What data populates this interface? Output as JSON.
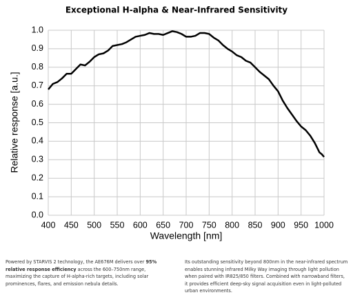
{
  "chart_data": {
    "type": "line",
    "title": "Exceptional H-alpha & Near-Infrared Sensitivity",
    "x_label": "Wavelength [nm]",
    "y_label": "Relative response [a.u.]",
    "x": [
      400,
      410,
      420,
      430,
      440,
      450,
      460,
      470,
      480,
      490,
      500,
      510,
      520,
      530,
      540,
      550,
      560,
      570,
      580,
      590,
      600,
      610,
      620,
      630,
      640,
      650,
      660,
      670,
      680,
      690,
      700,
      710,
      720,
      730,
      740,
      750,
      760,
      770,
      780,
      790,
      800,
      810,
      820,
      830,
      840,
      850,
      860,
      870,
      880,
      890,
      900,
      910,
      920,
      930,
      940,
      950,
      960,
      970,
      980,
      990,
      995,
      1000
    ],
    "series": [
      {
        "color": "#000000",
        "values": [
          0.68,
          0.71,
          0.72,
          0.74,
          0.765,
          0.765,
          0.79,
          0.815,
          0.81,
          0.83,
          0.855,
          0.87,
          0.875,
          0.89,
          0.915,
          0.92,
          0.925,
          0.935,
          0.95,
          0.965,
          0.97,
          0.975,
          0.985,
          0.98,
          0.98,
          0.975,
          0.985,
          0.995,
          0.99,
          0.98,
          0.965,
          0.965,
          0.97,
          0.985,
          0.985,
          0.98,
          0.96,
          0.945,
          0.92,
          0.9,
          0.885,
          0.865,
          0.855,
          0.835,
          0.825,
          0.8,
          0.775,
          0.755,
          0.735,
          0.7,
          0.67,
          0.62,
          0.58,
          0.545,
          0.51,
          0.48,
          0.46,
          0.43,
          0.39,
          0.34,
          0.33,
          0.315
        ]
      }
    ],
    "xlim": [
      400,
      1000
    ],
    "xticks": [
      400,
      450,
      500,
      550,
      600,
      650,
      700,
      750,
      800,
      850,
      900,
      950,
      1000
    ],
    "ylim": [
      0,
      1
    ],
    "yticks": [
      {
        "value": 0,
        "label": "0.0"
      },
      0.1,
      0.2,
      0.3,
      0.4,
      0.5,
      0.6,
      0.7,
      0.8,
      0.9,
      {
        "value": 1,
        "label": "1.0"
      }
    ],
    "grid": true
  },
  "text_blocks": [
    [
      "Powered by STARVIS 2 technology, the AE676M delivers over ",
      "95% relative response efficiency",
      " across the 600–750nm range, maximizing the capture of H-alpha-rich targets, including solar prominences, flares, and emission nebula details."
    ],
    [
      "Its outstanding sensitivity beyond 800nm in the near-infrared spectrum enables stunning infrared Milky Way imaging through light pollution when paired with IR825/850 filters. Combined with narrowband filters, it provides efficient deep-sky signal acquisition even in light-polluted urban environments."
    ]
  ]
}
